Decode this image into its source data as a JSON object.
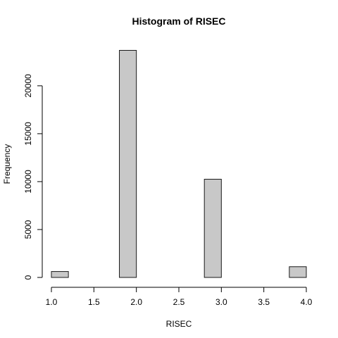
{
  "chart_data": {
    "type": "bar",
    "title": "Histogram of RISEC",
    "xlabel": "RISEC",
    "ylabel": "Frequency",
    "bins": [
      [
        1.0,
        1.2
      ],
      [
        1.2,
        1.4
      ],
      [
        1.4,
        1.6
      ],
      [
        1.6,
        1.8
      ],
      [
        1.8,
        2.0
      ],
      [
        2.0,
        2.2
      ],
      [
        2.2,
        2.4
      ],
      [
        2.4,
        2.6
      ],
      [
        2.6,
        2.8
      ],
      [
        2.8,
        3.0
      ],
      [
        3.0,
        3.2
      ],
      [
        3.2,
        3.4
      ],
      [
        3.4,
        3.6
      ],
      [
        3.6,
        3.8
      ],
      [
        3.8,
        4.0
      ]
    ],
    "values": [
      620,
      0,
      0,
      0,
      23700,
      0,
      0,
      0,
      0,
      10250,
      0,
      0,
      0,
      0,
      1120
    ],
    "xlim": [
      1.0,
      4.0
    ],
    "ylim": [
      0,
      25000
    ],
    "xticks": [
      "1.0",
      "1.5",
      "2.0",
      "2.5",
      "3.0",
      "3.5",
      "4.0"
    ],
    "yticks": [
      "0",
      "5000",
      "10000",
      "15000",
      "20000"
    ],
    "grid": false,
    "bar_fill": "#c8c8c8",
    "bar_stroke": "#1a1a1a"
  }
}
